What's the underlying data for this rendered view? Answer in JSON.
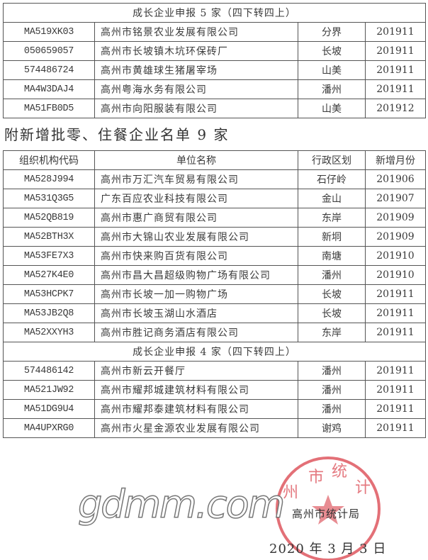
{
  "table_top": {
    "section_title": "成长企业申报 5 家（四下转四上）",
    "rows": [
      {
        "code": "MA519XK03",
        "name": "高州市铭景农业发展有限公司",
        "region": "分界",
        "month": "201911"
      },
      {
        "code": "050659057",
        "name": "高州市长坡镇木坑环保砖厂",
        "region": "长坡",
        "month": "201911"
      },
      {
        "code": "574486724",
        "name": "高州市黄雄球生猪屠宰场",
        "region": "山美",
        "month": "201911"
      },
      {
        "code": "MA4W3DAJ4",
        "name": "高州粤海水务有限公司",
        "region": "潘州",
        "month": "201911"
      },
      {
        "code": "MA51FB0D5",
        "name": "高州市向阳服装有限公司",
        "region": "山美",
        "month": "201912"
      }
    ]
  },
  "heading": "附新增批零、住餐企业名单 9 家",
  "table_main": {
    "headers": [
      "组织机构代码",
      "单位名称",
      "行政区划",
      "新增月份"
    ],
    "rows": [
      {
        "code": "MA528J994",
        "name": "高州市万汇汽车贸易有限公司",
        "region": "石仔岭",
        "month": "201906"
      },
      {
        "code": "MA531Q3G5",
        "name": "广东百应农业科技有限公司",
        "region": "金山",
        "month": "201907"
      },
      {
        "code": "MA52QB819",
        "name": "高州市惠广商贸有限公司",
        "region": "东岸",
        "month": "201909"
      },
      {
        "code": "MA52BTH3X",
        "name": "高州市大锦山农业发展有限公司",
        "region": "新垌",
        "month": "201909"
      },
      {
        "code": "MA53FE7X3",
        "name": "高州市快来购百货有限公司",
        "region": "南塘",
        "month": "201910"
      },
      {
        "code": "MA527K4E0",
        "name": "高州市昌大昌超级购物广场有限公司",
        "region": "潘州",
        "month": "201910"
      },
      {
        "code": "MA53HCPK7",
        "name": "高州市长坡一加一购物广场",
        "region": "长坡",
        "month": "201911"
      },
      {
        "code": "MA53JB2Q8",
        "name": "高州市长坡玉湖山水酒店",
        "region": "长坡",
        "month": "201911"
      },
      {
        "code": "MA52XXYH3",
        "name": "高州市胜记商务酒店有限公司",
        "region": "东岸",
        "month": "201911"
      }
    ],
    "section_title": "成长企业申报 4 家（四下转四上）",
    "section_rows": [
      {
        "code": "574486142",
        "name": "高州市新云开餐厅",
        "region": "潘州",
        "month": "201911"
      },
      {
        "code": "MA521JW92",
        "name": "高州市耀邦城建筑材料有限公司",
        "region": "潘州",
        "month": "201911"
      },
      {
        "code": "MA51DG9U4",
        "name": "高州市耀邦泰建筑材料有限公司",
        "region": "潘州",
        "month": "201911"
      },
      {
        "code": "MA4UPXRG0",
        "name": "高州市火星金源农业发展有限公司",
        "region": "谢鸡",
        "month": "201911"
      }
    ]
  },
  "signature": "高州市统计局",
  "stamp_text": "高州市统计局",
  "watermark": "gdmm.com",
  "date": "2020 年 3 月 3 日",
  "colors": {
    "stamp": "#d9404a",
    "ink": "#3a3a3a"
  }
}
